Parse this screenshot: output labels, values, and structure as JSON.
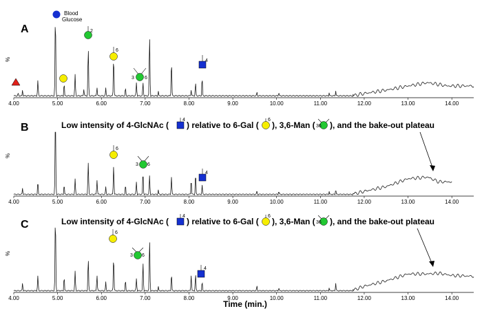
{
  "chart_data": [
    {
      "type": "line",
      "panel_label": "A",
      "ylabel": "%",
      "xlim": [
        4.0,
        14.5
      ],
      "x_ticks": [
        "4.00",
        "5.00",
        "6.00",
        "7.00",
        "8.00",
        "9.00",
        "10.00",
        "11.00",
        "12.00",
        "13.00",
        "14.00"
      ],
      "series": [
        {
          "x": [
            4.0,
            4.1,
            4.2,
            4.55,
            4.95,
            5.15,
            5.4,
            5.6,
            5.7,
            5.9,
            6.1,
            6.28,
            6.55,
            6.8,
            6.95,
            7.1,
            7.3,
            7.6,
            8.05,
            8.15,
            8.3,
            9.55,
            10.05,
            11.2,
            11.35,
            11.75,
            12.0,
            12.5,
            13.0,
            13.45,
            13.9,
            14.5
          ],
          "y": [
            0,
            6,
            9,
            21,
            100,
            17,
            28,
            10,
            60,
            12,
            12,
            48,
            12,
            18,
            18,
            75,
            8,
            43,
            9,
            18,
            24,
            7,
            6,
            6,
            8,
            4,
            5,
            9,
            14,
            18,
            14,
            14
          ]
        }
      ],
      "annotations": [
        {
          "symbol": "blue-circle",
          "text": "Blood Glucose",
          "x": 4.95
        },
        {
          "symbol": "red-triangle",
          "text": "",
          "x": 4.05
        },
        {
          "symbol": "yellow-circle",
          "text": "",
          "x": 5.15
        },
        {
          "symbol": "green-circle",
          "text": "2",
          "x": 5.7
        },
        {
          "symbol": "yellow-circle",
          "text": "6",
          "x": 6.28
        },
        {
          "symbol": "green-circle",
          "text": "36",
          "x": 6.95
        },
        {
          "symbol": "blue-square",
          "text": "4",
          "x": 8.3
        }
      ]
    },
    {
      "type": "line",
      "panel_label": "B",
      "ylabel": "%",
      "xlim": [
        4.0,
        14.5
      ],
      "x_ticks": [
        "4.00",
        "5.00",
        "6.00",
        "7.00",
        "8.00",
        "9.00",
        "10.00",
        "11.00",
        "12.00",
        "13.00",
        "14.00"
      ],
      "series": [
        {
          "x": [
            4.0,
            4.2,
            4.55,
            4.95,
            5.15,
            5.4,
            5.7,
            5.9,
            6.1,
            6.28,
            6.55,
            6.8,
            6.95,
            7.1,
            7.3,
            7.6,
            8.05,
            8.15,
            8.3,
            9.55,
            10.05,
            11.2,
            11.35,
            11.75,
            12.0,
            12.5,
            13.0,
            13.45,
            13.7,
            14.0
          ],
          "y": [
            0,
            10,
            18,
            100,
            14,
            22,
            42,
            20,
            12,
            38,
            14,
            18,
            30,
            26,
            8,
            24,
            20,
            28,
            14,
            7,
            6,
            6,
            8,
            4,
            6,
            12,
            22,
            24,
            18,
            18
          ]
        }
      ],
      "annotations": [
        {
          "symbol": "yellow-circle",
          "text": "6",
          "x": 6.28
        },
        {
          "symbol": "green-circle",
          "text": "36",
          "x": 6.95
        },
        {
          "symbol": "blue-square",
          "text": "4",
          "x": 8.3
        }
      ],
      "note": {
        "parts": [
          "Low intensity of 4-GlcNAc (",
          ") relative to 6-Gal (",
          "), 3,6-Man (",
          "), and the bake-out plateau"
        ],
        "symbol_labels": [
          "4",
          "6",
          "36"
        ]
      }
    },
    {
      "type": "line",
      "panel_label": "C",
      "ylabel": "%",
      "xlabel": "Time (min.)",
      "xlim": [
        4.0,
        14.5
      ],
      "x_ticks": [
        "4.00",
        "5.00",
        "6.00",
        "7.00",
        "8.00",
        "9.00",
        "10.00",
        "11.00",
        "12.00",
        "13.00",
        "14.00"
      ],
      "series": [
        {
          "x": [
            4.0,
            4.2,
            4.55,
            4.95,
            5.15,
            5.4,
            5.7,
            5.9,
            6.1,
            6.28,
            6.55,
            6.8,
            6.95,
            7.1,
            7.3,
            7.6,
            8.05,
            8.15,
            8.3,
            9.55,
            10.05,
            11.2,
            11.35,
            11.75,
            12.0,
            12.5,
            13.0,
            13.45,
            13.7,
            14.0,
            14.5
          ],
          "y": [
            0,
            12,
            22,
            100,
            20,
            28,
            44,
            22,
            14,
            46,
            16,
            18,
            38,
            70,
            8,
            24,
            22,
            24,
            14,
            9,
            6,
            6,
            12,
            4,
            8,
            15,
            24,
            24,
            25,
            22,
            21
          ]
        }
      ],
      "annotations": [
        {
          "symbol": "yellow-circle",
          "text": "6",
          "x": 6.28
        },
        {
          "symbol": "green-circle",
          "text": "36",
          "x": 6.95
        },
        {
          "symbol": "blue-square",
          "text": "4",
          "x": 8.3
        }
      ],
      "note": {
        "parts": [
          "Low intensity of 4-GlcNAc (",
          ") relative to 6-Gal (",
          "), 3,6-Man (",
          "), and the bake-out plateau"
        ],
        "symbol_labels": [
          "4",
          "6",
          "36"
        ]
      }
    }
  ],
  "colors": {
    "blue": "#1530d0",
    "green": "#22c832",
    "yellow": "#f6ee00",
    "red": "#e0201a"
  }
}
